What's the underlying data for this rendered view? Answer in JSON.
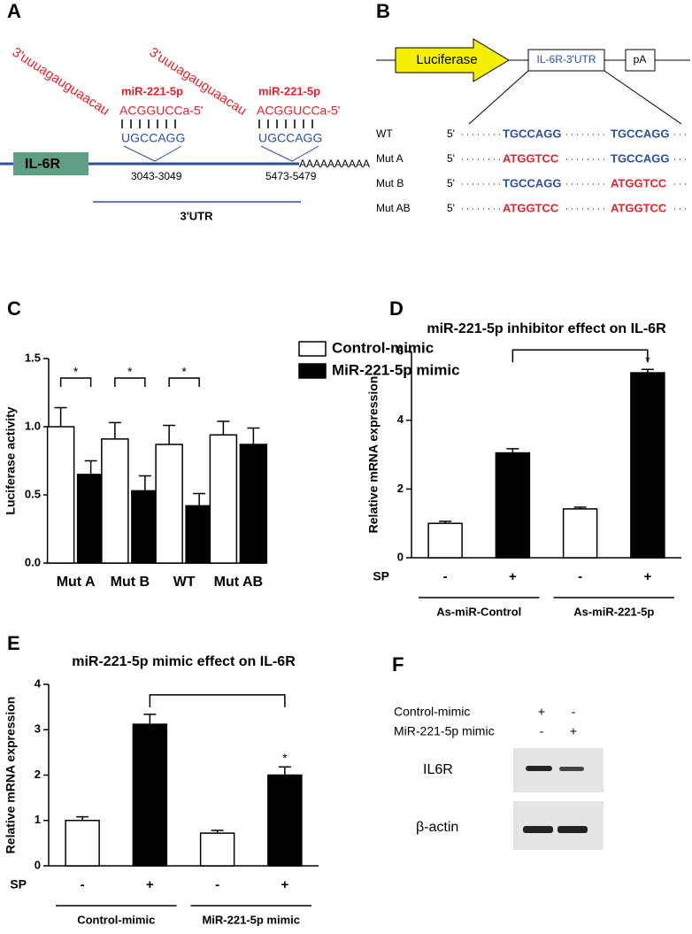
{
  "panel_a": {
    "letter": "A",
    "seq_3p": "3'uuuagauguaacau",
    "mir_label": "miR-221-5p",
    "mir_seq": "ACGGUCCa-5'",
    "site_seq": "UGCCAGG",
    "gene": "IL-6R",
    "sites": [
      "3043-3049",
      "5473-5479"
    ],
    "polya": "AAAAAAAAAA",
    "utr": "3'UTR"
  },
  "panel_b": {
    "letter": "B",
    "luciferase": "Luciferase",
    "utr_box": "IL-6R-3'UTR",
    "pa": "pA",
    "five": "5'",
    "rows": [
      {
        "name": "WT",
        "site1": "TGCCAGG",
        "site2": "TGCCAGG",
        "color1": "#2a4fa8",
        "color2": "#2a4fa8"
      },
      {
        "name": "Mut A",
        "site1": "ATGGTCC",
        "site2": "TGCCAGG",
        "color1": "#e8202a",
        "color2": "#2a4fa8"
      },
      {
        "name": "Mut B",
        "site1": "TGCCAGG",
        "site2": "ATGGTCC",
        "color1": "#2a4fa8",
        "color2": "#e8202a"
      },
      {
        "name": "Mut AB",
        "site1": "ATGGTCC",
        "site2": "ATGGTCC",
        "color1": "#e8202a",
        "color2": "#e8202a"
      }
    ]
  },
  "panel_f": {
    "letter": "F",
    "conditions": [
      {
        "label": "Control-mimic",
        "marks": [
          "+",
          "-"
        ]
      },
      {
        "label": "MiR-221-5p mimic",
        "marks": [
          "-",
          "+"
        ]
      }
    ],
    "bands": [
      "IL6R",
      "β-actin"
    ]
  },
  "chart_data": [
    {
      "type": "grouped-bar",
      "letter": "C",
      "ylabel": "Luciferase activity",
      "categories": [
        "Mut A",
        "Mut B",
        "WT",
        "Mut AB"
      ],
      "series": [
        {
          "name": "Control-mimic",
          "color": "#ffffff",
          "values": [
            1.0,
            0.91,
            0.87,
            0.94
          ],
          "errors": [
            0.14,
            0.12,
            0.14,
            0.1
          ]
        },
        {
          "name": "MiR-221-5p mimic",
          "color": "#000000",
          "values": [
            0.65,
            0.53,
            0.42,
            0.87
          ],
          "errors": [
            0.1,
            0.11,
            0.09,
            0.12
          ]
        }
      ],
      "significance": [
        "*",
        "*",
        "*",
        null
      ],
      "ylim": [
        0,
        1.5
      ],
      "yticks": [
        {
          "value": 0,
          "label": "0.0"
        },
        {
          "value": 0.5,
          "label": "0.5"
        },
        {
          "value": 1,
          "label": "1.0"
        },
        {
          "value": 1.5,
          "label": "1.5"
        }
      ]
    },
    {
      "type": "bar",
      "letter": "D",
      "title": "miR-221-5p inhibitor effect on IL-6R",
      "ylabel": "Relative mRNA expression",
      "category_label": "SP",
      "categories": [
        "-",
        "+",
        "-",
        "+"
      ],
      "groups": [
        "As-miR-Control",
        "As-miR-221-5p"
      ],
      "values": [
        1.0,
        3.05,
        1.42,
        5.38
      ],
      "errors": [
        0.06,
        0.12,
        0.05,
        0.1
      ],
      "colors": [
        "#ffffff",
        "#000000",
        "#ffffff",
        "#000000"
      ],
      "annotation": "*",
      "ylim": [
        0,
        6
      ],
      "yticks": [
        0,
        2,
        4,
        6
      ]
    },
    {
      "type": "bar",
      "letter": "E",
      "title": "miR-221-5p mimic effect on IL-6R",
      "ylabel": "Relative mRNA expression",
      "category_label": "SP",
      "categories": [
        "-",
        "+",
        "-",
        "+"
      ],
      "groups": [
        "Control-mimic",
        "MiR-221-5p mimic"
      ],
      "values": [
        1.0,
        3.12,
        0.72,
        2.0
      ],
      "errors": [
        0.08,
        0.22,
        0.06,
        0.18
      ],
      "colors": [
        "#ffffff",
        "#000000",
        "#ffffff",
        "#000000"
      ],
      "annotation": "*",
      "ylim": [
        0,
        4
      ],
      "yticks": [
        0,
        1,
        2,
        3,
        4
      ]
    }
  ]
}
